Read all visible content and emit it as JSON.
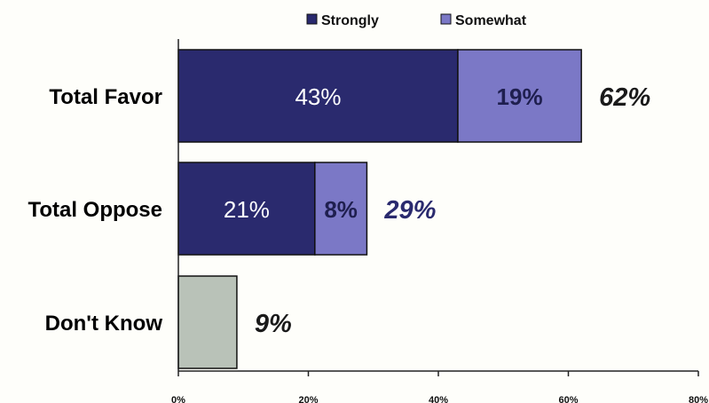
{
  "chart_data": {
    "type": "bar",
    "orientation": "horizontal",
    "stacked": true,
    "categories": [
      "Total Favor",
      "Total Oppose",
      "Don't Know"
    ],
    "series": [
      {
        "name": "Strongly",
        "values": [
          43,
          21,
          null
        ],
        "labels": [
          "43%",
          "21%",
          ""
        ],
        "color": "#2a2a6e",
        "label_color": "#ffffff"
      },
      {
        "name": "Somewhat",
        "values": [
          19,
          8,
          null
        ],
        "labels": [
          "19%",
          "8%",
          ""
        ],
        "color": "#7b78c6",
        "label_color": "#1f1f4f"
      },
      {
        "name": "",
        "values": [
          null,
          null,
          9
        ],
        "labels": [
          "",
          "",
          ""
        ],
        "color": "#b9c2b8",
        "label_color": "#000000"
      }
    ],
    "totals": [
      62,
      29,
      9
    ],
    "total_labels": [
      "62%",
      "29%",
      "9%"
    ],
    "total_label_colors": [
      "#1a1a1a",
      "#2a2a6e",
      "#1a1a1a"
    ],
    "xlim": [
      0,
      80
    ],
    "xticks": [
      0,
      20,
      40,
      60,
      80
    ],
    "xtick_labels": [
      "0%",
      "20%",
      "40%",
      "60%",
      "80%"
    ],
    "legend_position": "top",
    "legend": [
      {
        "label": "Strongly",
        "color": "#2a2a6e"
      },
      {
        "label": "Somewhat",
        "color": "#7b78c6"
      }
    ],
    "grid": false
  }
}
